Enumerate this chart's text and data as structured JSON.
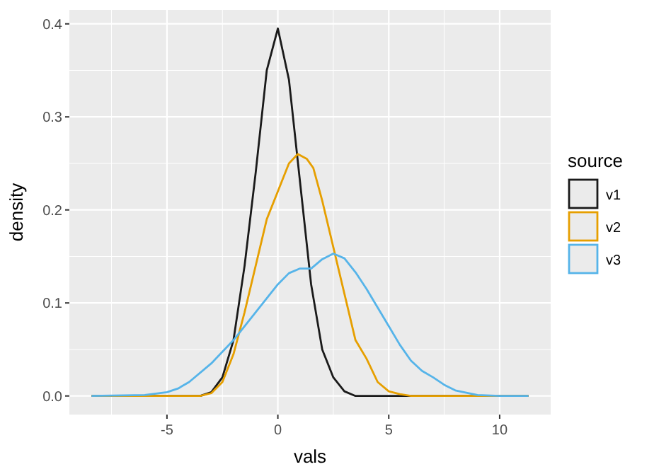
{
  "chart_data": {
    "type": "line",
    "xlabel": "vals",
    "ylabel": "density",
    "legend_title": "source",
    "legend": "right",
    "grid": true,
    "marker": "none",
    "line_style": "solid",
    "xlim": [
      -9.4,
      12.3
    ],
    "ylim": [
      -0.02,
      0.415
    ],
    "xticks": [
      -5,
      0,
      5,
      10
    ],
    "yticks": [
      {
        "value": 0,
        "label": "0.0"
      },
      {
        "value": 0.1,
        "label": "0.1"
      },
      {
        "value": 0.2,
        "label": "0.2"
      },
      {
        "value": 0.3,
        "label": "0.3"
      },
      {
        "value": 0.4,
        "label": "0.4"
      }
    ],
    "series": [
      {
        "name": "v1",
        "color": "#1a1a1a",
        "x": [
          -8.4,
          -3.5,
          -3,
          -2.5,
          -2,
          -1.5,
          -1,
          -0.5,
          0,
          0.5,
          1,
          1.5,
          2,
          2.5,
          3,
          3.5,
          11.3
        ],
        "values": [
          0,
          0,
          0.004,
          0.02,
          0.06,
          0.14,
          0.24,
          0.35,
          0.395,
          0.34,
          0.23,
          0.12,
          0.05,
          0.02,
          0.005,
          0,
          0
        ]
      },
      {
        "name": "v2",
        "color": "#e69f00",
        "x": [
          -8.4,
          -3.5,
          -3,
          -2.5,
          -2,
          -1.5,
          -1,
          -0.5,
          0,
          0.5,
          0.9,
          1.3,
          1.6,
          2,
          2.5,
          3,
          3.5,
          4,
          4.5,
          5,
          5.5,
          6,
          11.3
        ],
        "values": [
          0,
          0,
          0.003,
          0.015,
          0.045,
          0.09,
          0.14,
          0.19,
          0.22,
          0.25,
          0.26,
          0.255,
          0.245,
          0.21,
          0.16,
          0.11,
          0.06,
          0.04,
          0.015,
          0.005,
          0.002,
          0,
          0
        ]
      },
      {
        "name": "v3",
        "color": "#56b4e9",
        "x": [
          -8.4,
          -6,
          -5,
          -4.5,
          -4,
          -3,
          -2,
          -1,
          0,
          0.5,
          1,
          1.5,
          2,
          2.5,
          3,
          3.5,
          4,
          4.5,
          5,
          5.5,
          6,
          6.5,
          7,
          7.5,
          8,
          9,
          10,
          11.3
        ],
        "values": [
          0,
          0.001,
          0.004,
          0.008,
          0.015,
          0.035,
          0.06,
          0.09,
          0.12,
          0.132,
          0.137,
          0.137,
          0.147,
          0.153,
          0.148,
          0.133,
          0.115,
          0.095,
          0.075,
          0.055,
          0.038,
          0.027,
          0.02,
          0.012,
          0.006,
          0.001,
          0,
          0
        ]
      }
    ]
  }
}
